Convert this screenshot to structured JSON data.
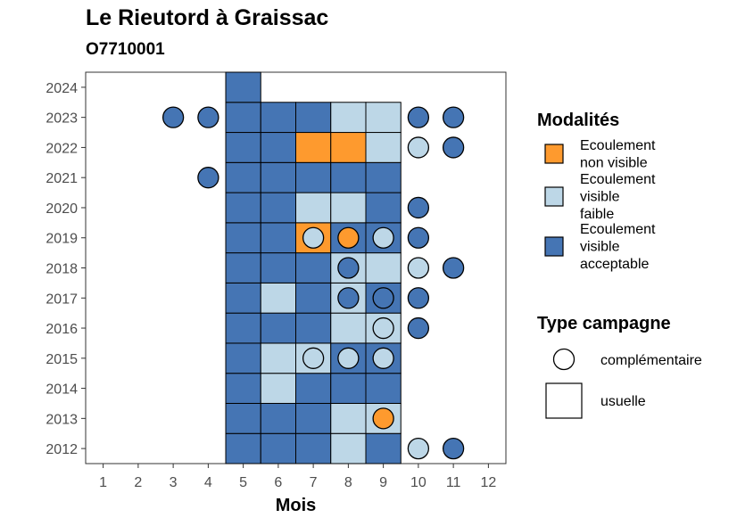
{
  "chart_data": {
    "type": "heatmap",
    "title": "Le Rieutord à Graissac",
    "subtitle": "O7710001",
    "xlabel": "Mois",
    "ylabel": "",
    "x_ticks": [
      "1",
      "2",
      "3",
      "4",
      "5",
      "6",
      "7",
      "8",
      "9",
      "10",
      "11",
      "12"
    ],
    "y_ticks": [
      "2012",
      "2013",
      "2014",
      "2015",
      "2016",
      "2017",
      "2018",
      "2019",
      "2020",
      "2021",
      "2022",
      "2023",
      "2024"
    ],
    "xlim": [
      0.5,
      12.5
    ],
    "ylim": [
      2011.5,
      2024.5
    ],
    "grid": false,
    "legend_position": "right",
    "colors": {
      "non_visible": "#FE9A2E",
      "visible_faible": "#BDD7E7",
      "visible_acceptable": "#4575B4"
    },
    "legends": [
      {
        "title": "Modalités",
        "entries": [
          {
            "key": "non_visible",
            "label_lines": [
              "Ecoulement",
              "non visible"
            ]
          },
          {
            "key": "visible_faible",
            "label_lines": [
              "Ecoulement",
              "visible",
              "faible"
            ]
          },
          {
            "key": "visible_acceptable",
            "label_lines": [
              "Ecoulement",
              "visible",
              "acceptable"
            ]
          }
        ]
      },
      {
        "title": "Type campagne",
        "entries": [
          {
            "shape": "circle",
            "label": "complémentaire"
          },
          {
            "shape": "square",
            "label": "usuelle"
          }
        ]
      }
    ],
    "usuelle": [
      {
        "year": 2012,
        "month": 5,
        "value": "visible_acceptable"
      },
      {
        "year": 2012,
        "month": 6,
        "value": "visible_acceptable"
      },
      {
        "year": 2012,
        "month": 7,
        "value": "visible_acceptable"
      },
      {
        "year": 2012,
        "month": 8,
        "value": "visible_faible"
      },
      {
        "year": 2012,
        "month": 9,
        "value": "visible_acceptable"
      },
      {
        "year": 2013,
        "month": 5,
        "value": "visible_acceptable"
      },
      {
        "year": 2013,
        "month": 6,
        "value": "visible_acceptable"
      },
      {
        "year": 2013,
        "month": 7,
        "value": "visible_acceptable"
      },
      {
        "year": 2013,
        "month": 8,
        "value": "visible_faible"
      },
      {
        "year": 2013,
        "month": 9,
        "value": "visible_faible"
      },
      {
        "year": 2014,
        "month": 5,
        "value": "visible_acceptable"
      },
      {
        "year": 2014,
        "month": 6,
        "value": "visible_faible"
      },
      {
        "year": 2014,
        "month": 7,
        "value": "visible_acceptable"
      },
      {
        "year": 2014,
        "month": 8,
        "value": "visible_acceptable"
      },
      {
        "year": 2014,
        "month": 9,
        "value": "visible_acceptable"
      },
      {
        "year": 2015,
        "month": 5,
        "value": "visible_acceptable"
      },
      {
        "year": 2015,
        "month": 6,
        "value": "visible_faible"
      },
      {
        "year": 2015,
        "month": 7,
        "value": "visible_faible"
      },
      {
        "year": 2015,
        "month": 8,
        "value": "visible_acceptable"
      },
      {
        "year": 2015,
        "month": 9,
        "value": "visible_acceptable"
      },
      {
        "year": 2016,
        "month": 5,
        "value": "visible_acceptable"
      },
      {
        "year": 2016,
        "month": 6,
        "value": "visible_acceptable"
      },
      {
        "year": 2016,
        "month": 7,
        "value": "visible_acceptable"
      },
      {
        "year": 2016,
        "month": 8,
        "value": "visible_faible"
      },
      {
        "year": 2016,
        "month": 9,
        "value": "visible_faible"
      },
      {
        "year": 2017,
        "month": 5,
        "value": "visible_acceptable"
      },
      {
        "year": 2017,
        "month": 6,
        "value": "visible_faible"
      },
      {
        "year": 2017,
        "month": 7,
        "value": "visible_acceptable"
      },
      {
        "year": 2017,
        "month": 8,
        "value": "visible_faible"
      },
      {
        "year": 2017,
        "month": 9,
        "value": "visible_acceptable"
      },
      {
        "year": 2018,
        "month": 5,
        "value": "visible_acceptable"
      },
      {
        "year": 2018,
        "month": 6,
        "value": "visible_acceptable"
      },
      {
        "year": 2018,
        "month": 7,
        "value": "visible_acceptable"
      },
      {
        "year": 2018,
        "month": 8,
        "value": "visible_faible"
      },
      {
        "year": 2018,
        "month": 9,
        "value": "visible_faible"
      },
      {
        "year": 2019,
        "month": 5,
        "value": "visible_acceptable"
      },
      {
        "year": 2019,
        "month": 6,
        "value": "visible_acceptable"
      },
      {
        "year": 2019,
        "month": 7,
        "value": "non_visible"
      },
      {
        "year": 2019,
        "month": 8,
        "value": "visible_acceptable"
      },
      {
        "year": 2019,
        "month": 9,
        "value": "visible_acceptable"
      },
      {
        "year": 2020,
        "month": 5,
        "value": "visible_acceptable"
      },
      {
        "year": 2020,
        "month": 6,
        "value": "visible_acceptable"
      },
      {
        "year": 2020,
        "month": 7,
        "value": "visible_faible"
      },
      {
        "year": 2020,
        "month": 8,
        "value": "visible_faible"
      },
      {
        "year": 2020,
        "month": 9,
        "value": "visible_acceptable"
      },
      {
        "year": 2021,
        "month": 5,
        "value": "visible_acceptable"
      },
      {
        "year": 2021,
        "month": 6,
        "value": "visible_acceptable"
      },
      {
        "year": 2021,
        "month": 7,
        "value": "visible_acceptable"
      },
      {
        "year": 2021,
        "month": 8,
        "value": "visible_acceptable"
      },
      {
        "year": 2021,
        "month": 9,
        "value": "visible_acceptable"
      },
      {
        "year": 2022,
        "month": 5,
        "value": "visible_acceptable"
      },
      {
        "year": 2022,
        "month": 6,
        "value": "visible_acceptable"
      },
      {
        "year": 2022,
        "month": 7,
        "value": "non_visible"
      },
      {
        "year": 2022,
        "month": 8,
        "value": "non_visible"
      },
      {
        "year": 2022,
        "month": 9,
        "value": "visible_faible"
      },
      {
        "year": 2023,
        "month": 5,
        "value": "visible_acceptable"
      },
      {
        "year": 2023,
        "month": 6,
        "value": "visible_acceptable"
      },
      {
        "year": 2023,
        "month": 7,
        "value": "visible_acceptable"
      },
      {
        "year": 2023,
        "month": 8,
        "value": "visible_faible"
      },
      {
        "year": 2023,
        "month": 9,
        "value": "visible_faible"
      },
      {
        "year": 2024,
        "month": 5,
        "value": "visible_acceptable"
      }
    ],
    "complementaire": [
      {
        "year": 2012,
        "month": 10,
        "value": "visible_faible"
      },
      {
        "year": 2012,
        "month": 11,
        "value": "visible_acceptable"
      },
      {
        "year": 2013,
        "month": 9,
        "value": "non_visible"
      },
      {
        "year": 2015,
        "month": 7,
        "value": "visible_faible"
      },
      {
        "year": 2015,
        "month": 8,
        "value": "visible_faible"
      },
      {
        "year": 2015,
        "month": 9,
        "value": "visible_faible"
      },
      {
        "year": 2016,
        "month": 9,
        "value": "visible_faible"
      },
      {
        "year": 2016,
        "month": 10,
        "value": "visible_acceptable"
      },
      {
        "year": 2017,
        "month": 8,
        "value": "visible_acceptable"
      },
      {
        "year": 2017,
        "month": 9,
        "value": "visible_acceptable"
      },
      {
        "year": 2017,
        "month": 10,
        "value": "visible_acceptable"
      },
      {
        "year": 2018,
        "month": 8,
        "value": "visible_acceptable"
      },
      {
        "year": 2018,
        "month": 10,
        "value": "visible_faible"
      },
      {
        "year": 2018,
        "month": 11,
        "value": "visible_acceptable"
      },
      {
        "year": 2019,
        "month": 7,
        "value": "visible_faible"
      },
      {
        "year": 2019,
        "month": 8,
        "value": "non_visible"
      },
      {
        "year": 2019,
        "month": 9,
        "value": "visible_faible"
      },
      {
        "year": 2019,
        "month": 10,
        "value": "visible_acceptable"
      },
      {
        "year": 2020,
        "month": 10,
        "value": "visible_acceptable"
      },
      {
        "year": 2021,
        "month": 4,
        "value": "visible_acceptable"
      },
      {
        "year": 2022,
        "month": 10,
        "value": "visible_faible"
      },
      {
        "year": 2022,
        "month": 11,
        "value": "visible_acceptable"
      },
      {
        "year": 2023,
        "month": 3,
        "value": "visible_acceptable"
      },
      {
        "year": 2023,
        "month": 4,
        "value": "visible_acceptable"
      },
      {
        "year": 2023,
        "month": 10,
        "value": "visible_acceptable"
      },
      {
        "year": 2023,
        "month": 11,
        "value": "visible_acceptable"
      }
    ]
  }
}
